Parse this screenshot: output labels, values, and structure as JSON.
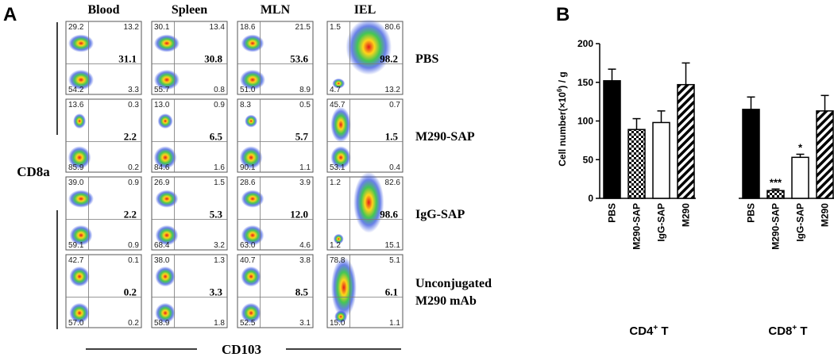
{
  "panel_a": {
    "label": "A",
    "columns": [
      "Blood",
      "Spleen",
      "MLN",
      "IEL"
    ],
    "y_label": "CD8a",
    "x_label": "CD103",
    "rows": [
      {
        "label": [
          "PBS"
        ],
        "plots": [
          {
            "ul": "29.2",
            "ur": "13.2",
            "ll": "54.2",
            "lr": "3.3",
            "mid": "31.1"
          },
          {
            "ul": "30.1",
            "ur": "13.4",
            "ll": "55.7",
            "lr": "0.8",
            "mid": "30.8"
          },
          {
            "ul": "18.6",
            "ur": "21.5",
            "ll": "51.0",
            "lr": "8.9",
            "mid": "53.6"
          },
          {
            "ul": "1.5",
            "ur": "80.6",
            "ll": "4.7",
            "lr": "13.2",
            "mid": "98.2"
          }
        ]
      },
      {
        "label": [
          "M290-SAP"
        ],
        "plots": [
          {
            "ul": "13.6",
            "ur": "0.3",
            "ll": "85.9",
            "lr": "0.2",
            "mid": "2.2"
          },
          {
            "ul": "13.0",
            "ur": "0.9",
            "ll": "84.6",
            "lr": "1.6",
            "mid": "6.5"
          },
          {
            "ul": "8.3",
            "ur": "0.5",
            "ll": "90.1",
            "lr": "1.1",
            "mid": "5.7"
          },
          {
            "ul": "45.7",
            "ur": "0.7",
            "ll": "53.1",
            "lr": "0.4",
            "mid": "1.5"
          }
        ]
      },
      {
        "label": [
          "IgG-SAP"
        ],
        "plots": [
          {
            "ul": "39.0",
            "ur": "0.9",
            "ll": "59.1",
            "lr": "0.9",
            "mid": "2.2"
          },
          {
            "ul": "26.9",
            "ur": "1.5",
            "ll": "68.4",
            "lr": "3.2",
            "mid": "5.3"
          },
          {
            "ul": "28.6",
            "ur": "3.9",
            "ll": "63.0",
            "lr": "4.6",
            "mid": "12.0"
          },
          {
            "ul": "1.2",
            "ur": "82.6",
            "ll": "1.2",
            "lr": "15.1",
            "mid": "98.6"
          }
        ]
      },
      {
        "label": [
          "Unconjugated",
          "M290 mAb"
        ],
        "plots": [
          {
            "ul": "42.7",
            "ur": "0.1",
            "ll": "57.0",
            "lr": "0.2",
            "mid": "0.2"
          },
          {
            "ul": "38.0",
            "ur": "1.3",
            "ll": "58.9",
            "lr": "1.8",
            "mid": "3.3"
          },
          {
            "ul": "40.7",
            "ur": "3.8",
            "ll": "52.5",
            "lr": "3.1",
            "mid": "8.5"
          },
          {
            "ul": "78.8",
            "ur": "5.1",
            "ll": "15.0",
            "lr": "1.1",
            "mid": "6.1"
          }
        ]
      }
    ]
  },
  "chart_data": {
    "type": "bar",
    "label": "B",
    "ylabel": [
      "Cell number(×10",
      "6",
      ") / g"
    ],
    "ylim": [
      0,
      200
    ],
    "yticks": [
      0,
      50,
      100,
      150,
      200
    ],
    "patterns": [
      "solid",
      "checker",
      "none",
      "hatch"
    ],
    "groups": [
      {
        "name": [
          "CD4",
          "+",
          " T"
        ],
        "categories": [
          "PBS",
          "M290-SAP",
          "IgG-SAP",
          "M290"
        ],
        "values": [
          152,
          89,
          98,
          147
        ],
        "errors": [
          15,
          14,
          15,
          28
        ],
        "marks": [
          null,
          null,
          null,
          null
        ]
      },
      {
        "name": [
          "CD8",
          "+",
          " T"
        ],
        "categories": [
          "PBS",
          "M290-SAP",
          "IgG-SAP",
          "M290"
        ],
        "values": [
          115,
          10,
          53,
          113
        ],
        "errors": [
          16,
          2,
          4,
          20
        ],
        "marks": [
          null,
          "***",
          "*",
          null
        ]
      }
    ]
  }
}
